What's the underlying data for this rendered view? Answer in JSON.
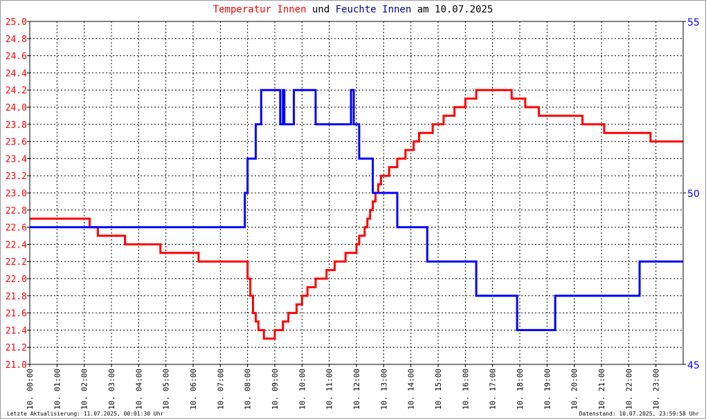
{
  "chart_data": {
    "type": "line",
    "title": {
      "part1": "Temperatur Innen",
      "part2": "und",
      "part3": "Feuchte Innen",
      "part4": "am 10.07.2025"
    },
    "x_tick_labels": [
      "10. 00:00",
      "10. 01:00",
      "10. 02:00",
      "10. 03:00",
      "10. 04:00",
      "10. 05:00",
      "10. 06:00",
      "10. 07:00",
      "10. 08:00",
      "10. 09:00",
      "10. 10:00",
      "10. 11:00",
      "10. 12:00",
      "10. 13:00",
      "10. 14:00",
      "10. 15:00",
      "10. 16:00",
      "10. 17:00",
      "10. 18:00",
      "10. 19:00",
      "10. 20:00",
      "10. 21:00",
      "10. 22:00",
      "10. 23:00"
    ],
    "xlim_hours": [
      0,
      24
    ],
    "y_left": {
      "ylim": [
        21.0,
        25.0
      ],
      "ticks": [
        "21.0",
        "21.2",
        "21.4",
        "21.6",
        "21.8",
        "22.0",
        "22.2",
        "22.4",
        "22.6",
        "22.8",
        "23.0",
        "23.2",
        "23.4",
        "23.6",
        "23.8",
        "24.0",
        "24.2",
        "24.4",
        "24.6",
        "24.8",
        "25.0"
      ],
      "color": "#ff0000"
    },
    "y_right": {
      "ylim": [
        45,
        55
      ],
      "ticks": [
        "45",
        "50",
        "55"
      ],
      "color": "#0000ff"
    },
    "grid": true,
    "series": [
      {
        "name": "Temperatur Innen",
        "axis": "left",
        "color": "#ff0000",
        "step": true,
        "points": [
          [
            0,
            22.7
          ],
          [
            2.2,
            22.6
          ],
          [
            2.5,
            22.5
          ],
          [
            3.5,
            22.4
          ],
          [
            4.8,
            22.3
          ],
          [
            6.2,
            22.2
          ],
          [
            7.9,
            22.2
          ],
          [
            8.0,
            22.0
          ],
          [
            8.1,
            21.8
          ],
          [
            8.2,
            21.6
          ],
          [
            8.3,
            21.5
          ],
          [
            8.4,
            21.4
          ],
          [
            8.6,
            21.3
          ],
          [
            9.0,
            21.4
          ],
          [
            9.3,
            21.5
          ],
          [
            9.5,
            21.6
          ],
          [
            9.8,
            21.7
          ],
          [
            10.0,
            21.8
          ],
          [
            10.2,
            21.9
          ],
          [
            10.5,
            22.0
          ],
          [
            10.9,
            22.1
          ],
          [
            11.2,
            22.2
          ],
          [
            11.6,
            22.3
          ],
          [
            12.0,
            22.4
          ],
          [
            12.1,
            22.5
          ],
          [
            12.3,
            22.6
          ],
          [
            12.4,
            22.7
          ],
          [
            12.5,
            22.8
          ],
          [
            12.6,
            22.9
          ],
          [
            12.7,
            23.0
          ],
          [
            12.8,
            23.1
          ],
          [
            12.9,
            23.2
          ],
          [
            13.2,
            23.3
          ],
          [
            13.5,
            23.4
          ],
          [
            13.8,
            23.5
          ],
          [
            14.1,
            23.6
          ],
          [
            14.3,
            23.7
          ],
          [
            14.8,
            23.8
          ],
          [
            15.2,
            23.9
          ],
          [
            15.6,
            24.0
          ],
          [
            16.0,
            24.1
          ],
          [
            16.4,
            24.2
          ],
          [
            17.7,
            24.1
          ],
          [
            18.2,
            24.0
          ],
          [
            18.7,
            23.9
          ],
          [
            20.3,
            23.8
          ],
          [
            21.1,
            23.7
          ],
          [
            22.8,
            23.6
          ],
          [
            24,
            23.6
          ]
        ]
      },
      {
        "name": "Feuchte Innen",
        "axis": "right",
        "color": "#0000ff",
        "step": true,
        "points": [
          [
            0,
            49
          ],
          [
            7.9,
            50
          ],
          [
            8.0,
            51
          ],
          [
            8.3,
            52
          ],
          [
            8.5,
            53
          ],
          [
            9.2,
            52
          ],
          [
            9.3,
            53
          ],
          [
            9.35,
            52
          ],
          [
            9.7,
            53
          ],
          [
            10.5,
            52
          ],
          [
            11.8,
            53
          ],
          [
            11.9,
            52
          ],
          [
            12.1,
            51
          ],
          [
            12.6,
            50
          ],
          [
            13.5,
            49
          ],
          [
            14.6,
            48
          ],
          [
            16.4,
            47
          ],
          [
            17.9,
            46
          ],
          [
            19.3,
            47
          ],
          [
            22.4,
            48
          ],
          [
            24,
            48
          ]
        ]
      }
    ]
  },
  "footer": {
    "left": "Letzte Aktualisierung: 11.07.2025, 00:01:30 Uhr",
    "right": "Datenstand: 10.07.2025, 23:59:58 Uhr"
  }
}
